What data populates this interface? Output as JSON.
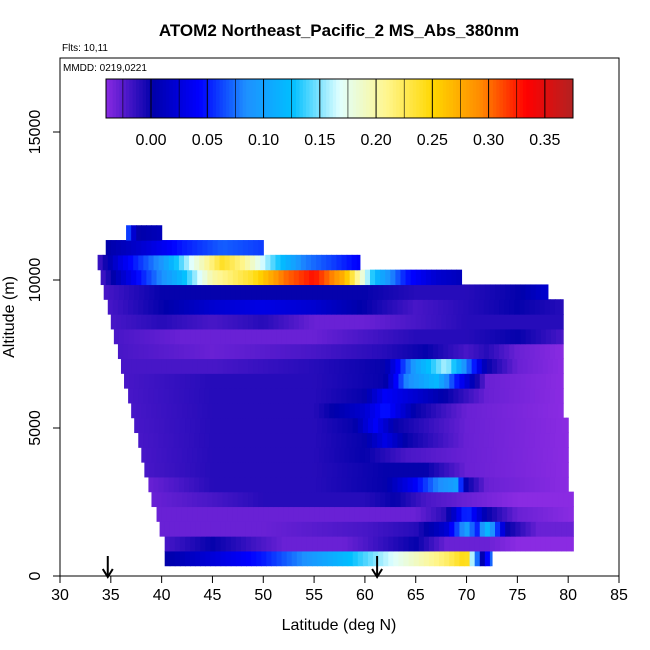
{
  "chart_data": {
    "type": "heatmap",
    "title": "ATOM2 Northeast_Pacific_2 MS_Abs_380nm",
    "flights_note": "Flts: 10,11",
    "date_note": "MMDD: 0219,0221",
    "xlabel": "Latitude (deg N)",
    "ylabel": "Altitude (m)",
    "xlim": [
      30,
      85
    ],
    "ylim": [
      0,
      17500
    ],
    "x_ticks": [
      "30",
      "35",
      "40",
      "45",
      "50",
      "55",
      "60",
      "65",
      "70",
      "75",
      "80",
      "85"
    ],
    "y_ticks": [
      "0",
      "5000",
      "10000",
      "15000"
    ],
    "colorbar": {
      "ticks": [
        "0.00",
        "0.05",
        "0.10",
        "0.15",
        "0.20",
        "0.25",
        "0.30",
        "0.35"
      ],
      "range": [
        -0.04,
        0.375
      ],
      "colors": [
        "#8a2be2",
        "#0000aa",
        "#0000ff",
        "#1e90ff",
        "#00bfff",
        "#e0ffff",
        "#fff68f",
        "#ffd700",
        "#ff8c00",
        "#ff0000",
        "#b22222"
      ]
    },
    "markers": [
      {
        "label": "",
        "x": 34.7
      },
      {
        "label": "",
        "x": 61.2
      }
    ],
    "rows": [
      {
        "alt": 600,
        "xmin": 40.3,
        "xmax": 72.5,
        "vals": [
          [
            40.3,
            0.0
          ],
          [
            50,
            0.05
          ],
          [
            58,
            0.12
          ],
          [
            64,
            0.18
          ],
          [
            68,
            0.22
          ],
          [
            70,
            0.25
          ],
          [
            71.5,
            0.0
          ],
          [
            72.5,
            0.08
          ]
        ]
      },
      {
        "alt": 1100,
        "xmin": 40.3,
        "xmax": 80.5,
        "vals": [
          [
            40.3,
            -0.02
          ],
          [
            45,
            0.0
          ],
          [
            52,
            -0.03
          ],
          [
            58,
            -0.03
          ],
          [
            65,
            0.0
          ],
          [
            68,
            -0.03
          ],
          [
            72,
            -0.03
          ],
          [
            75,
            -0.04
          ],
          [
            80.5,
            -0.04
          ]
        ]
      },
      {
        "alt": 1600,
        "xmin": 39.8,
        "xmax": 80.5,
        "vals": [
          [
            39.8,
            -0.03
          ],
          [
            50,
            -0.03
          ],
          [
            60,
            -0.02
          ],
          [
            65,
            -0.01
          ],
          [
            68,
            0.02
          ],
          [
            70,
            0.1
          ],
          [
            71,
            0.05
          ],
          [
            72,
            0.12
          ],
          [
            74,
            0.0
          ],
          [
            77,
            -0.03
          ],
          [
            80.5,
            -0.03
          ]
        ]
      },
      {
        "alt": 2100,
        "xmin": 39.5,
        "xmax": 80.5,
        "vals": [
          [
            39.5,
            -0.03
          ],
          [
            50,
            -0.03
          ],
          [
            60,
            -0.03
          ],
          [
            65,
            -0.03
          ],
          [
            68,
            -0.01
          ],
          [
            70,
            0.06
          ],
          [
            72,
            0.0
          ],
          [
            75,
            -0.03
          ],
          [
            80.5,
            -0.04
          ]
        ]
      },
      {
        "alt": 2600,
        "xmin": 39.0,
        "xmax": 80.5,
        "vals": [
          [
            39.0,
            -0.03
          ],
          [
            45,
            -0.02
          ],
          [
            50,
            -0.01
          ],
          [
            55,
            -0.01
          ],
          [
            60,
            -0.01
          ],
          [
            63,
            0.0
          ],
          [
            66,
            -0.02
          ],
          [
            70,
            -0.03
          ],
          [
            75,
            -0.04
          ],
          [
            80.5,
            -0.04
          ]
        ]
      },
      {
        "alt": 3100,
        "xmin": 38.7,
        "xmax": 80.0,
        "vals": [
          [
            38.7,
            -0.03
          ],
          [
            45,
            -0.01
          ],
          [
            55,
            -0.01
          ],
          [
            62,
            0.0
          ],
          [
            65,
            0.04
          ],
          [
            67,
            0.08
          ],
          [
            69,
            0.1
          ],
          [
            70,
            0.0
          ],
          [
            72,
            -0.03
          ],
          [
            80.0,
            -0.04
          ]
        ]
      },
      {
        "alt": 3600,
        "xmin": 38.3,
        "xmax": 80.0,
        "vals": [
          [
            38.3,
            -0.02
          ],
          [
            45,
            -0.01
          ],
          [
            55,
            -0.01
          ],
          [
            62,
            0.0
          ],
          [
            66,
            0.0
          ],
          [
            70,
            -0.03
          ],
          [
            80.0,
            -0.04
          ]
        ]
      },
      {
        "alt": 4100,
        "xmin": 38.0,
        "xmax": 80.0,
        "vals": [
          [
            38.0,
            -0.02
          ],
          [
            45,
            -0.01
          ],
          [
            55,
            -0.01
          ],
          [
            60,
            0.0
          ],
          [
            64,
            -0.02
          ],
          [
            70,
            -0.03
          ],
          [
            80.0,
            -0.04
          ]
        ]
      },
      {
        "alt": 4600,
        "xmin": 37.7,
        "xmax": 80.0,
        "vals": [
          [
            37.7,
            -0.02
          ],
          [
            45,
            -0.01
          ],
          [
            55,
            -0.01
          ],
          [
            60,
            0.0
          ],
          [
            62,
            0.03
          ],
          [
            64,
            0.0
          ],
          [
            70,
            -0.03
          ],
          [
            80.0,
            -0.04
          ]
        ]
      },
      {
        "alt": 5100,
        "xmin": 37.3,
        "xmax": 80.0,
        "vals": [
          [
            37.3,
            -0.02
          ],
          [
            45,
            -0.01
          ],
          [
            55,
            -0.01
          ],
          [
            59,
            0.0
          ],
          [
            61,
            0.04
          ],
          [
            63,
            0.0
          ],
          [
            70,
            -0.03
          ],
          [
            80.0,
            -0.04
          ]
        ]
      },
      {
        "alt": 5600,
        "xmin": 37.0,
        "xmax": 79.5,
        "vals": [
          [
            37.0,
            -0.02
          ],
          [
            45,
            -0.01
          ],
          [
            55,
            -0.01
          ],
          [
            60,
            0.02
          ],
          [
            62,
            0.05
          ],
          [
            65,
            0.0
          ],
          [
            70,
            -0.03
          ],
          [
            79.5,
            -0.04
          ]
        ]
      },
      {
        "alt": 6100,
        "xmin": 36.7,
        "xmax": 79.5,
        "vals": [
          [
            36.7,
            -0.02
          ],
          [
            45,
            -0.01
          ],
          [
            55,
            -0.01
          ],
          [
            60,
            0.0
          ],
          [
            62,
            0.04
          ],
          [
            65,
            0.02
          ],
          [
            68,
            0.0
          ],
          [
            72,
            -0.03
          ],
          [
            79.5,
            -0.04
          ]
        ]
      },
      {
        "alt": 6600,
        "xmin": 36.3,
        "xmax": 79.5,
        "vals": [
          [
            36.3,
            -0.02
          ],
          [
            45,
            -0.01
          ],
          [
            55,
            -0.01
          ],
          [
            62,
            0.0
          ],
          [
            64,
            0.08
          ],
          [
            67,
            0.12
          ],
          [
            69,
            0.05
          ],
          [
            72,
            -0.03
          ],
          [
            79.5,
            -0.04
          ]
        ]
      },
      {
        "alt": 7100,
        "xmin": 36.0,
        "xmax": 79.5,
        "vals": [
          [
            36.0,
            -0.02
          ],
          [
            45,
            -0.02
          ],
          [
            55,
            -0.01
          ],
          [
            62,
            0.0
          ],
          [
            65,
            0.1
          ],
          [
            68,
            0.16
          ],
          [
            70,
            0.08
          ],
          [
            72,
            0.0
          ],
          [
            75,
            -0.03
          ],
          [
            79.5,
            -0.04
          ]
        ]
      },
      {
        "alt": 7600,
        "xmin": 35.7,
        "xmax": 79.5,
        "vals": [
          [
            35.7,
            -0.02
          ],
          [
            45,
            -0.03
          ],
          [
            55,
            -0.02
          ],
          [
            62,
            -0.01
          ],
          [
            66,
            0.0
          ],
          [
            70,
            -0.02
          ],
          [
            72,
            -0.01
          ],
          [
            75,
            -0.03
          ],
          [
            79.5,
            -0.04
          ]
        ]
      },
      {
        "alt": 8100,
        "xmin": 35.3,
        "xmax": 79.5,
        "vals": [
          [
            35.3,
            -0.02
          ],
          [
            42,
            -0.03
          ],
          [
            50,
            -0.03
          ],
          [
            55,
            -0.03
          ],
          [
            60,
            -0.02
          ],
          [
            65,
            -0.01
          ],
          [
            70,
            -0.01
          ],
          [
            75,
            0.0
          ],
          [
            79.5,
            -0.02
          ]
        ]
      },
      {
        "alt": 8600,
        "xmin": 35.0,
        "xmax": 79.5,
        "vals": [
          [
            35.0,
            -0.02
          ],
          [
            40,
            -0.01
          ],
          [
            45,
            -0.02
          ],
          [
            50,
            -0.01
          ],
          [
            55,
            -0.03
          ],
          [
            60,
            -0.03
          ],
          [
            65,
            -0.02
          ],
          [
            70,
            -0.01
          ],
          [
            75,
            -0.01
          ],
          [
            79.5,
            -0.01
          ]
        ]
      },
      {
        "alt": 9100,
        "xmin": 34.7,
        "xmax": 79.5,
        "vals": [
          [
            34.7,
            -0.02
          ],
          [
            40,
            0.0
          ],
          [
            45,
            0.02
          ],
          [
            50,
            0.03
          ],
          [
            55,
            0.02
          ],
          [
            60,
            0.0
          ],
          [
            65,
            -0.02
          ],
          [
            70,
            -0.01
          ],
          [
            75,
            0.0
          ],
          [
            79.5,
            -0.01
          ]
        ]
      },
      {
        "alt": 9600,
        "xmin": 34.3,
        "xmax": 78.0,
        "vals": [
          [
            34.3,
            -0.02
          ],
          [
            40,
            0.0
          ],
          [
            45,
            0.0
          ],
          [
            50,
            0.0
          ],
          [
            55,
            0.0
          ],
          [
            60,
            0.0
          ],
          [
            65,
            -0.01
          ],
          [
            70,
            -0.01
          ],
          [
            75,
            0.0
          ],
          [
            78.0,
            0.02
          ]
        ]
      },
      {
        "alt": 10100,
        "xmin": 34.0,
        "xmax": 69.5,
        "vals": [
          [
            34.0,
            -0.02
          ],
          [
            38,
            0.05
          ],
          [
            42,
            0.12
          ],
          [
            45,
            0.2
          ],
          [
            49,
            0.24
          ],
          [
            52,
            0.3
          ],
          [
            55,
            0.33
          ],
          [
            58,
            0.27
          ],
          [
            61,
            0.12
          ],
          [
            64,
            0.05
          ],
          [
            67,
            0.02
          ],
          [
            69.5,
            0.01
          ]
        ]
      },
      {
        "alt": 10600,
        "xmin": 33.7,
        "xmax": 59.5,
        "vals": [
          [
            33.7,
            -0.02
          ],
          [
            36,
            0.03
          ],
          [
            40,
            0.09
          ],
          [
            43,
            0.17
          ],
          [
            46,
            0.24
          ],
          [
            48,
            0.21
          ],
          [
            51,
            0.14
          ],
          [
            54,
            0.08
          ],
          [
            57,
            0.06
          ],
          [
            59.5,
            0.04
          ]
        ]
      },
      {
        "alt": 11100,
        "xmin": 34.5,
        "xmax": 50.0,
        "vals": [
          [
            34.5,
            0.0
          ],
          [
            38,
            0.02
          ],
          [
            42,
            0.05
          ],
          [
            46,
            0.07
          ],
          [
            50.0,
            0.06
          ]
        ]
      },
      {
        "alt": 11600,
        "xmin": 36.5,
        "xmax": 40.0,
        "vals": [
          [
            36.5,
            0.08
          ],
          [
            37.5,
            0.0
          ],
          [
            40.0,
            0.01
          ]
        ]
      }
    ]
  }
}
